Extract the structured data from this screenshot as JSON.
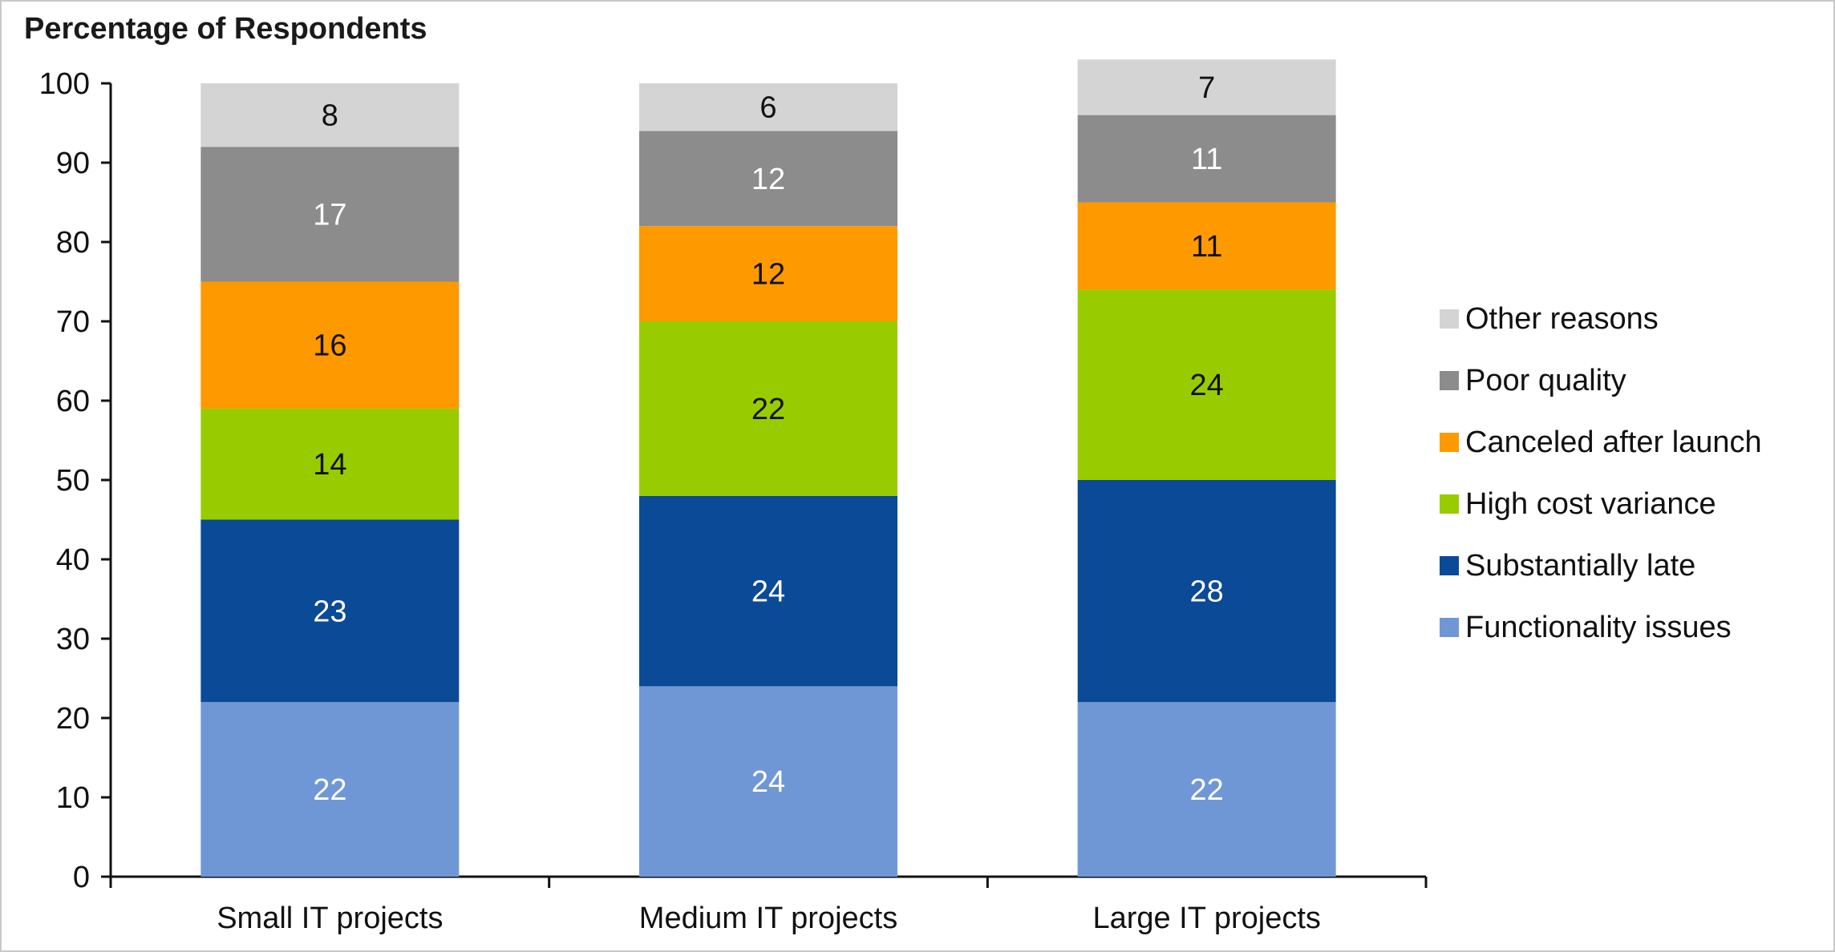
{
  "chart_data": {
    "type": "bar",
    "stacked": true,
    "title": "Percentage of Respondents",
    "xlabel": "",
    "ylabel": "Percentage of Respondents",
    "ylim": [
      0,
      100
    ],
    "yticks": [
      0,
      10,
      20,
      30,
      40,
      50,
      60,
      70,
      80,
      90,
      100
    ],
    "categories": [
      "Small IT projects",
      "Medium IT projects",
      "Large IT projects"
    ],
    "legend_position": "right",
    "series": [
      {
        "name": "Functionality issues",
        "color": "#6f97d5",
        "label_color": "#ffffff",
        "values": [
          22,
          24,
          22
        ]
      },
      {
        "name": "Substantially late",
        "color": "#0b4a96",
        "label_color": "#ffffff",
        "values": [
          23,
          24,
          28
        ]
      },
      {
        "name": "High cost variance",
        "color": "#99cc00",
        "label_color": "#111111",
        "values": [
          14,
          22,
          24
        ]
      },
      {
        "name": "Canceled after launch",
        "color": "#ff9900",
        "label_color": "#111111",
        "values": [
          16,
          12,
          11
        ]
      },
      {
        "name": "Poor quality",
        "color": "#8c8c8c",
        "label_color": "#ffffff",
        "values": [
          17,
          12,
          11
        ]
      },
      {
        "name": "Other reasons",
        "color": "#d4d4d4",
        "label_color": "#111111",
        "values": [
          8,
          6,
          7
        ]
      }
    ]
  }
}
